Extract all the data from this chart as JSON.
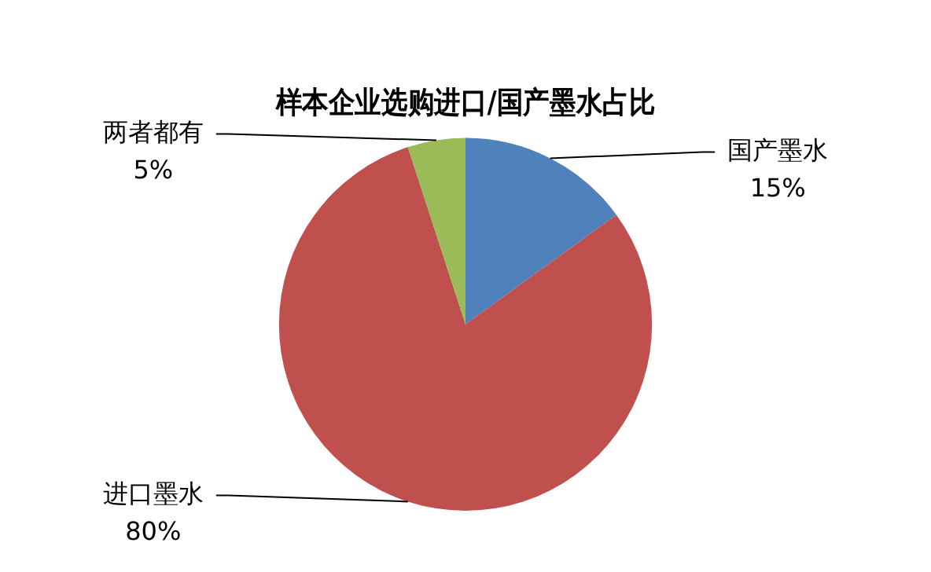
{
  "chart_data": {
    "type": "pie",
    "title": "样本企业选购进口/国产墨水占比",
    "categories": [
      "国产墨水",
      "进口墨水",
      "两者都有"
    ],
    "values": [
      15,
      80,
      5
    ],
    "value_labels": [
      "15%",
      "80%",
      "5%"
    ],
    "colors": [
      "#4f81bd",
      "#c0504d",
      "#9bbb59"
    ],
    "legend": false
  }
}
